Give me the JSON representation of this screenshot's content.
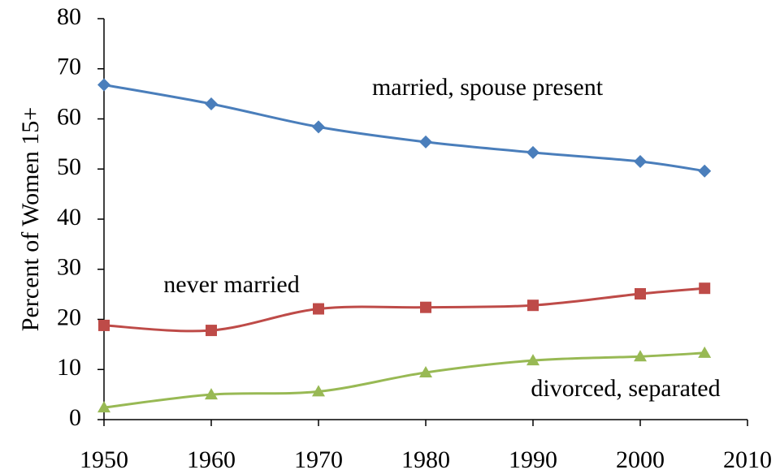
{
  "chart_data": {
    "type": "line",
    "y_label": "Percent of Women 15+",
    "x": [
      1950,
      1960,
      1970,
      1980,
      1990,
      2000,
      2006
    ],
    "series": [
      {
        "name": "married, spouse present",
        "color": "#4a7ebb",
        "marker": "diamond",
        "values": [
          66.8,
          63.0,
          58.4,
          55.4,
          53.3,
          51.5,
          49.6
        ]
      },
      {
        "name": "never married",
        "color": "#be4b48",
        "marker": "square",
        "values": [
          18.8,
          17.8,
          22.1,
          22.4,
          22.8,
          25.1,
          26.2
        ]
      },
      {
        "name": "divorced, separated",
        "color": "#98b954",
        "marker": "triangle",
        "values": [
          2.4,
          5.0,
          5.6,
          9.4,
          11.8,
          12.6,
          13.3
        ]
      }
    ],
    "xlim": [
      1950,
      2010
    ],
    "xticks": [
      1950,
      1960,
      1970,
      1980,
      1990,
      2000,
      2010
    ],
    "ylim": [
      0,
      80
    ],
    "yticks": [
      0,
      10,
      20,
      30,
      40,
      50,
      60,
      70,
      80
    ],
    "grid": false
  }
}
